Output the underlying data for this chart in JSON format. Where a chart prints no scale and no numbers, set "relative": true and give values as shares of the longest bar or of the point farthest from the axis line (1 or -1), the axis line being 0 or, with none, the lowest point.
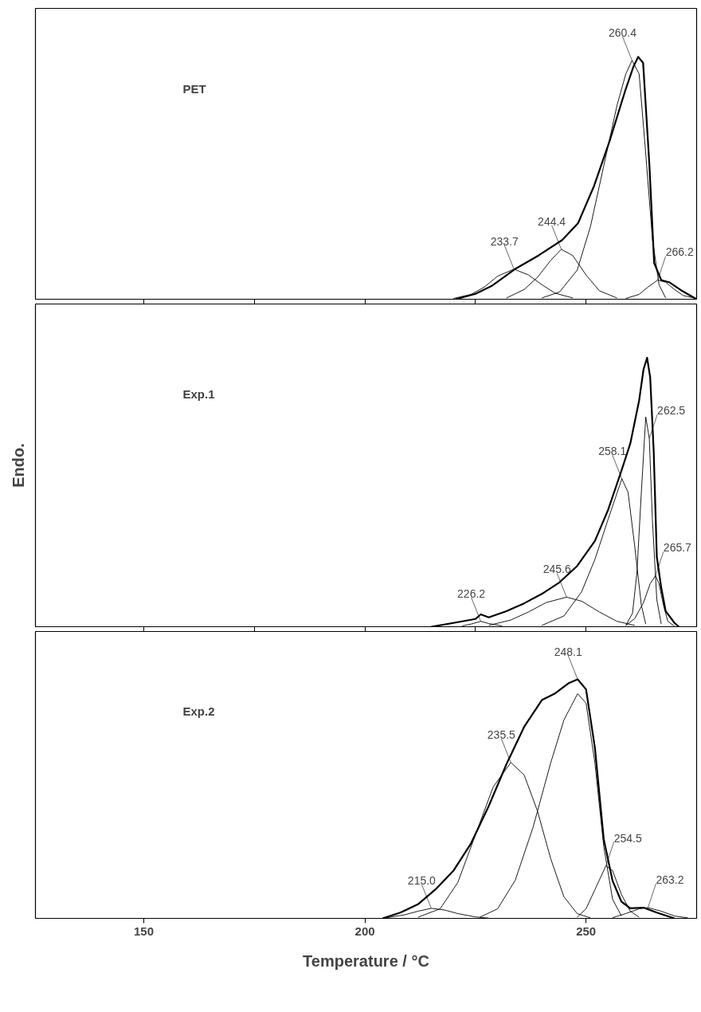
{
  "chart_data": [
    {
      "type": "line",
      "title": "PET",
      "relative": true,
      "xlim": [
        125.5,
        275
      ],
      "xticks": [
        150,
        175,
        200,
        225,
        250
      ],
      "tick_labels": false,
      "series": [
        {
          "color": "#000000",
          "x": [
            220.5,
            225,
            228.6,
            233.9,
            239.3,
            244.6,
            248.2,
            251.8,
            255.4,
            258.9,
            260.7,
            261.8,
            262.9,
            264.3,
            265.4,
            267,
            268.8,
            271.4,
            275
          ],
          "values": [
            0,
            0.022,
            0.054,
            0.124,
            0.181,
            0.244,
            0.314,
            0.467,
            0.657,
            0.863,
            0.959,
            1,
            0.975,
            0.562,
            0.149,
            0.079,
            0.07,
            0.038,
            0
          ]
        },
        {
          "color": "#000000",
          "x": [
            220,
            224,
            227,
            230,
            233.7,
            237,
            240,
            243,
            247
          ],
          "values": [
            0.003,
            0.02,
            0.05,
            0.095,
            0.124,
            0.1,
            0.06,
            0.025,
            0.005
          ]
        },
        {
          "color": "#000000",
          "x": [
            232,
            236,
            239,
            242,
            244.4,
            247,
            250,
            253,
            257
          ],
          "values": [
            0.005,
            0.04,
            0.09,
            0.16,
            0.206,
            0.18,
            0.1,
            0.035,
            0.005
          ]
        },
        {
          "color": "#000000",
          "x": [
            240,
            244,
            248,
            251,
            254,
            257,
            259,
            260.4,
            262,
            263.5,
            265,
            266.5,
            268
          ],
          "values": [
            0.005,
            0.03,
            0.12,
            0.3,
            0.55,
            0.8,
            0.93,
            0.985,
            0.93,
            0.6,
            0.25,
            0.06,
            0.005
          ]
        },
        {
          "color": "#000000",
          "x": [
            259,
            262,
            264,
            266.2,
            268,
            270,
            272,
            275
          ],
          "values": [
            0.003,
            0.02,
            0.05,
            0.079,
            0.07,
            0.04,
            0.015,
            0.003
          ]
        }
      ],
      "annotations": [
        {
          "text": "233.7",
          "x": 233.7,
          "y": 0.124
        },
        {
          "text": "244.4",
          "x": 244.4,
          "y": 0.206
        },
        {
          "text": "260.4",
          "x": 260.4,
          "y": 0.985
        },
        {
          "text": "266.2",
          "x": 266.2,
          "y": 0.079
        }
      ]
    },
    {
      "type": "line",
      "title": "Exp.1",
      "ylabel": "Endo.",
      "relative": true,
      "xlim": [
        125.5,
        275
      ],
      "xticks": [
        150,
        175,
        200,
        225,
        250
      ],
      "tick_labels": false,
      "series": [
        {
          "color": "#000000",
          "x": [
            215,
            220,
            225,
            226.2,
            228,
            232,
            236,
            240,
            244,
            248,
            252,
            255,
            258,
            260,
            262,
            263,
            263.8,
            264.5,
            265.3,
            266,
            267,
            268,
            270,
            271
          ],
          "values": [
            0,
            0.014,
            0.029,
            0.046,
            0.035,
            0.058,
            0.087,
            0.122,
            0.165,
            0.226,
            0.319,
            0.435,
            0.58,
            0.681,
            0.841,
            0.957,
            1,
            0.928,
            0.652,
            0.26,
            0.145,
            0.058,
            0.014,
            0
          ]
        },
        {
          "color": "#000000",
          "x": [
            222,
            224,
            226.2,
            228,
            231
          ],
          "values": [
            0.003,
            0.01,
            0.02,
            0.012,
            0.003
          ]
        },
        {
          "color": "#000000",
          "x": [
            228,
            233,
            237,
            241,
            245.6,
            249,
            253,
            257,
            261
          ],
          "values": [
            0.005,
            0.025,
            0.055,
            0.09,
            0.11,
            0.095,
            0.055,
            0.02,
            0.005
          ]
        },
        {
          "color": "#000000",
          "x": [
            240,
            245,
            249,
            252,
            255,
            258.1,
            259.5,
            261,
            262.5,
            263.5
          ],
          "values": [
            0.005,
            0.04,
            0.13,
            0.25,
            0.4,
            0.55,
            0.5,
            0.3,
            0.08,
            0.01
          ]
        },
        {
          "color": "#000000",
          "x": [
            259,
            260.5,
            261.5,
            262.5,
            263.5,
            264.3,
            265,
            266,
            267
          ],
          "values": [
            0.005,
            0.05,
            0.2,
            0.5,
            0.78,
            0.7,
            0.4,
            0.1,
            0.01
          ]
        },
        {
          "color": "#000000",
          "x": [
            259,
            261,
            263,
            264.5,
            265.7,
            266.5,
            267.5,
            268.5,
            270
          ],
          "values": [
            0.005,
            0.03,
            0.09,
            0.16,
            0.19,
            0.16,
            0.08,
            0.02,
            0.002
          ]
        }
      ],
      "annotations": [
        {
          "text": "226.2",
          "x": 226.2,
          "y": 0.02
        },
        {
          "text": "245.6",
          "x": 245.6,
          "y": 0.11
        },
        {
          "text": "258.1",
          "x": 258.1,
          "y": 0.55
        },
        {
          "text": "262.5",
          "x": 264.3,
          "y": 0.7
        },
        {
          "text": "265.7",
          "x": 265.7,
          "y": 0.19
        }
      ]
    },
    {
      "type": "line",
      "title": "Exp.2",
      "xlabel": "Temperature / °C",
      "relative": true,
      "xlim": [
        125.5,
        275
      ],
      "xticks": [
        150,
        200,
        250
      ],
      "tick_labels": "x",
      "series": [
        {
          "color": "#000000",
          "x": [
            204,
            208,
            212,
            216,
            220,
            224,
            228,
            232,
            236,
            240,
            243,
            246,
            248.1,
            250,
            252,
            254,
            256,
            258,
            260,
            263,
            266,
            270
          ],
          "values": [
            0,
            0.024,
            0.059,
            0.122,
            0.199,
            0.314,
            0.47,
            0.645,
            0.801,
            0.913,
            0.941,
            0.983,
            1,
            0.958,
            0.714,
            0.331,
            0.157,
            0.07,
            0.042,
            0.045,
            0.024,
            0
          ]
        },
        {
          "color": "#000000",
          "x": [
            205,
            209,
            212,
            215,
            218,
            221,
            225,
            228
          ],
          "values": [
            0.003,
            0.015,
            0.03,
            0.042,
            0.035,
            0.02,
            0.006,
            0.001
          ]
        },
        {
          "color": "#000000",
          "x": [
            212,
            217,
            221,
            225,
            229,
            233,
            236,
            239,
            242,
            245,
            248,
            251
          ],
          "values": [
            0.005,
            0.04,
            0.15,
            0.35,
            0.55,
            0.652,
            0.6,
            0.45,
            0.25,
            0.09,
            0.02,
            0.002
          ]
        },
        {
          "color": "#000000",
          "x": [
            226,
            230,
            234,
            238,
            242,
            245,
            248.1,
            250,
            252,
            254,
            256,
            258
          ],
          "values": [
            0.005,
            0.04,
            0.16,
            0.38,
            0.65,
            0.83,
            0.94,
            0.9,
            0.65,
            0.3,
            0.08,
            0.01
          ]
        },
        {
          "color": "#000000",
          "x": [
            248,
            250,
            252,
            254.5,
            256,
            258,
            260,
            262
          ],
          "values": [
            0.005,
            0.04,
            0.12,
            0.22,
            0.2,
            0.1,
            0.03,
            0.005
          ]
        },
        {
          "color": "#000000",
          "x": [
            256,
            259,
            262,
            264,
            267,
            270,
            273
          ],
          "values": [
            0.003,
            0.02,
            0.04,
            0.045,
            0.03,
            0.01,
            0.002
          ]
        }
      ],
      "annotations": [
        {
          "text": "215.0",
          "x": 215,
          "y": 0.042
        },
        {
          "text": "235.5",
          "x": 233,
          "y": 0.652
        },
        {
          "text": "248.1",
          "x": 248.1,
          "y": 1
        },
        {
          "text": "254.5",
          "x": 254.5,
          "y": 0.22
        },
        {
          "text": "263.2",
          "x": 264,
          "y": 0.045
        }
      ]
    }
  ]
}
